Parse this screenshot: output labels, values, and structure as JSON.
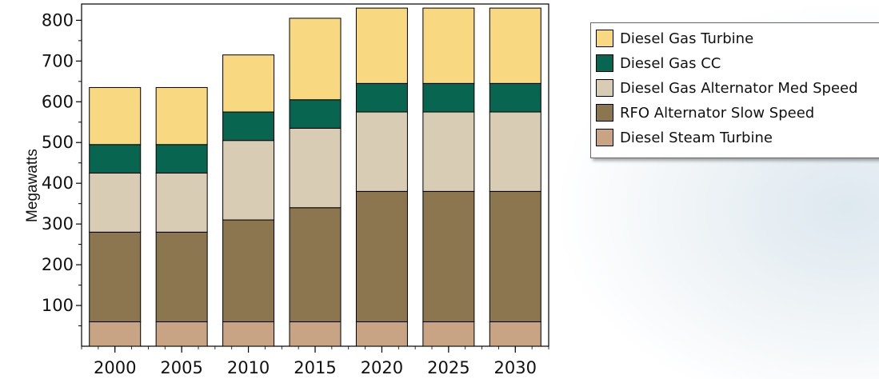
{
  "chart_data": {
    "type": "bar",
    "stacked": true,
    "title": "",
    "xlabel": "",
    "ylabel": "Megawatts",
    "categories": [
      "2000",
      "2005",
      "2010",
      "2015",
      "2020",
      "2025",
      "2030"
    ],
    "ylim": [
      0,
      840
    ],
    "yticks": [
      100,
      200,
      300,
      400,
      500,
      600,
      700,
      800
    ],
    "grid": false,
    "legend_position": "right",
    "series": [
      {
        "name": "Diesel Steam Turbine",
        "color": "#c8a484",
        "values": [
          60,
          60,
          60,
          60,
          60,
          60,
          60
        ]
      },
      {
        "name": "RFO Alternator Slow Speed",
        "color": "#8b7650",
        "values": [
          220,
          220,
          250,
          280,
          320,
          320,
          320
        ]
      },
      {
        "name": "Diesel Gas Alternator Med Speed",
        "color": "#d8ccb5",
        "values": [
          145,
          145,
          195,
          195,
          195,
          195,
          195
        ]
      },
      {
        "name": "Diesel Gas CC",
        "color": "#086650",
        "values": [
          70,
          70,
          70,
          70,
          70,
          70,
          70
        ]
      },
      {
        "name": "Diesel Gas Turbine",
        "color": "#f8d880",
        "values": [
          140,
          140,
          140,
          200,
          185,
          185,
          185
        ]
      }
    ],
    "legend_order": [
      "Diesel Gas Turbine",
      "Diesel Gas CC",
      "Diesel Gas Alternator Med Speed",
      "RFO Alternator Slow Speed",
      "Diesel Steam Turbine"
    ]
  }
}
